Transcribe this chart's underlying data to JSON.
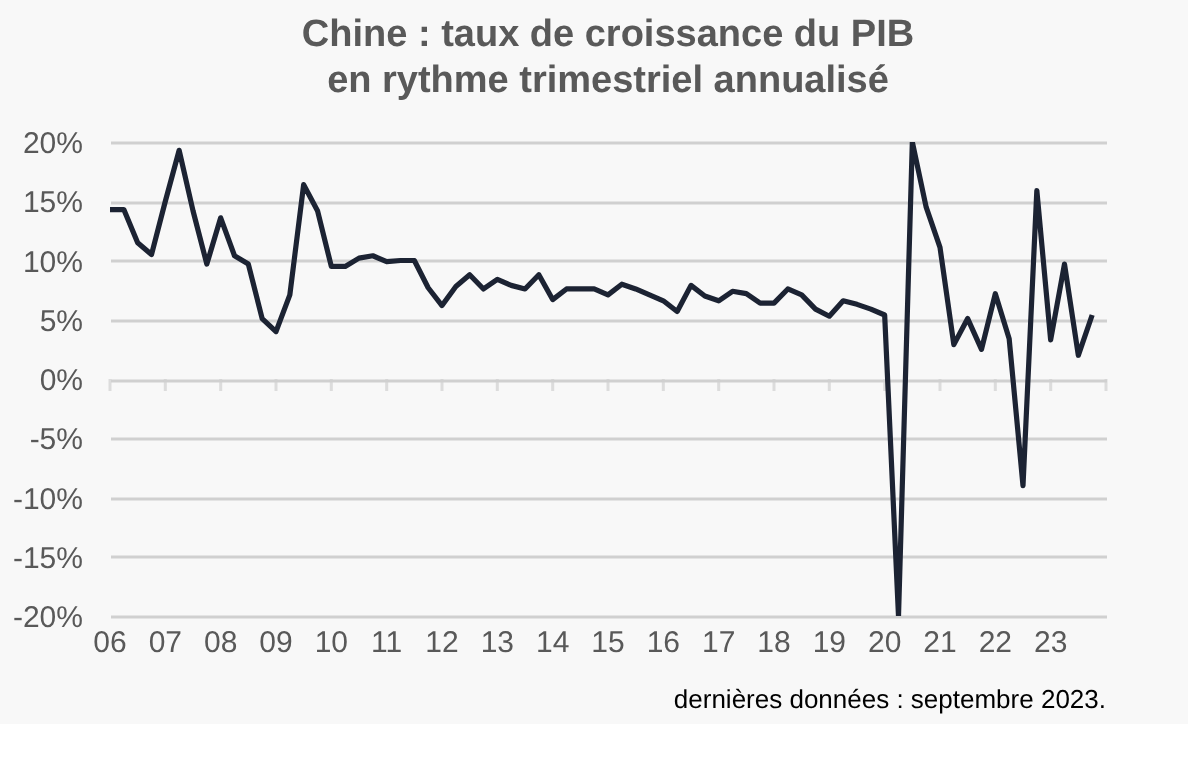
{
  "chart_data": {
    "type": "line",
    "title": "Chine : taux de croissance du PIB\nen rythme trimestriel annualisé",
    "x": [
      2006,
      2006.25,
      2006.5,
      2006.75,
      2007,
      2007.25,
      2007.5,
      2007.75,
      2008,
      2008.25,
      2008.5,
      2008.75,
      2009,
      2009.25,
      2009.5,
      2009.75,
      2010,
      2010.25,
      2010.5,
      2010.75,
      2011,
      2011.25,
      2011.5,
      2011.75,
      2012,
      2012.25,
      2012.5,
      2012.75,
      2013,
      2013.25,
      2013.5,
      2013.75,
      2014,
      2014.25,
      2014.5,
      2014.75,
      2015,
      2015.25,
      2015.5,
      2015.75,
      2016,
      2016.25,
      2016.5,
      2016.75,
      2017,
      2017.25,
      2017.5,
      2017.75,
      2018,
      2018.25,
      2018.5,
      2018.75,
      2019,
      2019.25,
      2019.5,
      2019.75,
      2020,
      2020.25,
      2020.5,
      2020.75,
      2021,
      2021.25,
      2021.5,
      2021.75,
      2022,
      2022.25,
      2022.5,
      2022.75,
      2023,
      2023.25,
      2023.5,
      2023.75
    ],
    "series": [
      {
        "color": "#1c2333",
        "values": [
          14.3,
          14.3,
          11.5,
          10.5,
          15.0,
          19.3,
          14.2,
          9.7,
          13.6,
          10.4,
          9.7,
          5.1,
          4.0,
          7.1,
          16.4,
          14.2,
          9.5,
          9.5,
          10.2,
          10.4,
          9.9,
          10.0,
          10.0,
          7.7,
          6.2,
          7.8,
          8.8,
          7.6,
          8.4,
          7.9,
          7.6,
          8.8,
          6.7,
          7.6,
          7.6,
          7.6,
          7.1,
          8.0,
          7.6,
          7.1,
          6.6,
          5.7,
          7.9,
          7.0,
          6.6,
          7.4,
          7.2,
          6.4,
          6.4,
          7.6,
          7.1,
          5.9,
          5.3,
          6.6,
          6.3,
          5.9,
          5.4,
          -20,
          20,
          14.5,
          11.1,
          2.9,
          5.1,
          2.5,
          7.2,
          3.4,
          -9.0,
          15.9,
          3.3,
          9.7,
          2.0,
          5.4
        ]
      }
    ],
    "xlim": [
      2006,
      2024
    ],
    "xticks": [
      {
        "value": 2006,
        "label": "06"
      },
      {
        "value": 2007,
        "label": "07"
      },
      {
        "value": 2008,
        "label": "08"
      },
      {
        "value": 2009,
        "label": "09"
      },
      {
        "value": 2010,
        "label": "10"
      },
      {
        "value": 2011,
        "label": "11"
      },
      {
        "value": 2012,
        "label": "12"
      },
      {
        "value": 2013,
        "label": "13"
      },
      {
        "value": 2014,
        "label": "14"
      },
      {
        "value": 2015,
        "label": "15"
      },
      {
        "value": 2016,
        "label": "16"
      },
      {
        "value": 2017,
        "label": "17"
      },
      {
        "value": 2018,
        "label": "18"
      },
      {
        "value": 2019,
        "label": "19"
      },
      {
        "value": 2020,
        "label": "20"
      },
      {
        "value": 2021,
        "label": "21"
      },
      {
        "value": 2022,
        "label": "22"
      },
      {
        "value": 2023,
        "label": "23"
      },
      {
        "value": 2024,
        "label": null
      }
    ],
    "ylim": [
      -20,
      20
    ],
    "yticks": [
      {
        "value": -20,
        "label": "-20%"
      },
      {
        "value": -15,
        "label": "-15%"
      },
      {
        "value": -10,
        "label": "-10%"
      },
      {
        "value": -5,
        "label": "-5%"
      },
      {
        "value": 0,
        "label": "0%"
      },
      {
        "value": 5,
        "label": "5%"
      },
      {
        "value": 10,
        "label": "10%"
      },
      {
        "value": 15,
        "label": "15%"
      },
      {
        "value": 20,
        "label": "20%"
      }
    ],
    "grid": "y",
    "marker": "none",
    "line_style": "solid",
    "annotations": [
      "dernières données : septembre 2023."
    ]
  }
}
